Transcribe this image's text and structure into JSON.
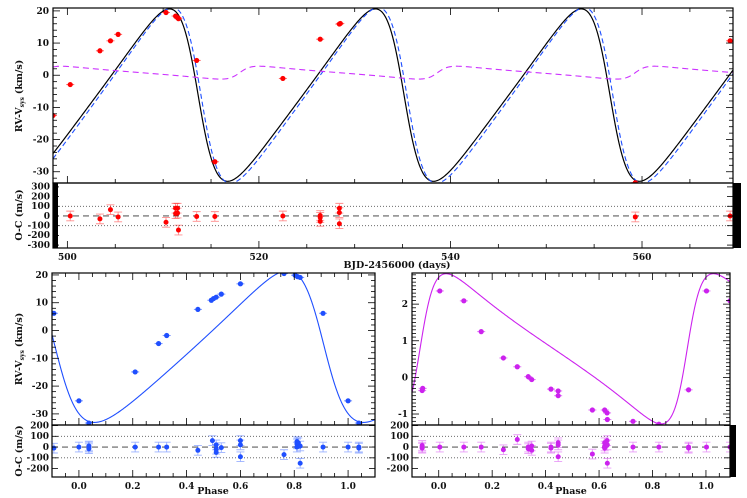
{
  "chart_data": [
    {
      "type": "line",
      "panel": "top-time-series",
      "xlabel": "BJD-2456000 (days)",
      "ylabel": {
        "main": "RV-V",
        "sub": "sys",
        "unit": "(km/s)"
      },
      "xlim": [
        498.5,
        569.5
      ],
      "ylim": [
        -33.5,
        20.9
      ],
      "xticks": [
        "500",
        "520",
        "540",
        "560"
      ],
      "xtick_values": [
        500,
        520,
        540,
        560
      ],
      "yticks": [
        "20",
        "10",
        "0",
        "-10",
        "-20",
        "-30"
      ],
      "ytick_values": [
        20,
        10,
        0,
        -10,
        -20,
        -30
      ],
      "colors": {
        "data": "#ff0000",
        "model_total": "#000000",
        "model_primary": "#1f4fff",
        "model_secondary": "#cc33ff"
      },
      "series": [
        {
          "type": "scatter",
          "x": [
            498.5,
            500.3,
            503.4,
            504.5,
            505.3,
            510.3,
            511.3,
            511.5,
            511.6,
            513.5,
            515.4,
            522.5,
            526.4,
            528.4,
            528.5,
            559.3,
            569.2
          ],
          "y": [
            -12.5,
            -2.9,
            7.6,
            10.7,
            12.7,
            19.5,
            18.4,
            17.9,
            17.6,
            4.6,
            -26.9,
            -1.0,
            11.2,
            15.9,
            16.1,
            -33.4,
            10.7
          ]
        }
      ],
      "residuals": {
        "ylabel": "O-C (m/s)",
        "ylim": [
          -330,
          340
        ],
        "yticks": [
          "300",
          "200",
          "100",
          "0",
          "-100",
          "-200",
          "-300"
        ],
        "ytick_values": [
          300,
          200,
          100,
          0,
          -100,
          -200,
          -300
        ],
        "x": [
          498.5,
          500.3,
          503.4,
          504.5,
          505.3,
          510.3,
          511.3,
          511.3,
          511.5,
          511.5,
          511.6,
          513.5,
          515.4,
          522.5,
          526.4,
          526.4,
          526.4,
          528.4,
          528.4,
          528.4,
          559.3,
          569.2
        ],
        "y": [
          0,
          0,
          -30,
          65,
          -10,
          -65,
          80,
          25,
          80,
          30,
          -145,
          -5,
          -5,
          0,
          5,
          -15,
          -55,
          80,
          35,
          -80,
          -10,
          0
        ],
        "err": 50
      }
    },
    {
      "type": "line",
      "panel": "bottom-left-phase",
      "xlabel": "Phase",
      "ylabel": {
        "main": "RV-V",
        "sub": "sys",
        "unit": "(km/s)"
      },
      "xlim": [
        -0.1,
        1.1
      ],
      "ylim": [
        -34,
        20.7
      ],
      "xticks": [
        "0.0",
        "0.2",
        "0.4",
        "0.6",
        "0.8",
        "1.0"
      ],
      "xtick_values": [
        0,
        0.2,
        0.4,
        0.6,
        0.8,
        1.0
      ],
      "yticks": [
        "20",
        "10",
        "0",
        "-10",
        "-20",
        "-30"
      ],
      "ytick_values": [
        20,
        10,
        0,
        -10,
        -20,
        -30
      ],
      "color": "#1f4fff",
      "series": [
        {
          "type": "scatter",
          "x": [
            -0.093,
            0.0,
            0.037,
            0.209,
            0.296,
            0.326,
            0.442,
            0.492,
            0.5,
            0.51,
            0.529,
            0.6,
            0.762,
            0.803,
            0.812,
            0.822,
            0.907,
            1.0,
            1.04
          ],
          "y": [
            6.2,
            -25.3,
            -33.3,
            -14.9,
            -4.7,
            -1.8,
            7.6,
            10.9,
            11.5,
            12.0,
            13.1,
            16.8,
            20.5,
            19.9,
            19.4,
            19.1,
            6.2,
            -25.3,
            -33.3
          ]
        }
      ],
      "residuals": {
        "ylabel": "O-C (m/s)",
        "ylim": [
          -278,
          205
        ],
        "yticks": [
          "200",
          "100",
          "0",
          "-100",
          "-200"
        ],
        "ytick_values": [
          200,
          100,
          0,
          -100,
          -200
        ],
        "x": [
          -0.093,
          0.0,
          0.037,
          0.037,
          0.037,
          0.209,
          0.296,
          0.326,
          0.442,
          0.496,
          0.51,
          0.51,
          0.51,
          0.529,
          0.6,
          0.6,
          0.6,
          0.762,
          0.81,
          0.81,
          0.81,
          0.815,
          0.822,
          0.822,
          0.907,
          1.0,
          1.04,
          1.04
        ],
        "y": [
          -10,
          0,
          0,
          -15,
          10,
          0,
          0,
          0,
          -30,
          60,
          -20,
          -50,
          20,
          -5,
          60,
          20,
          -90,
          -70,
          50,
          30,
          0,
          40,
          -150,
          10,
          0,
          0,
          0,
          -10
        ],
        "err": 45
      }
    },
    {
      "type": "line",
      "panel": "bottom-right-phase",
      "xlabel": "Phase",
      "xlim": [
        -0.1,
        1.09
      ],
      "ylim": [
        -1.3,
        2.85
      ],
      "xticks": [
        "0.0",
        "0.2",
        "0.4",
        "0.6",
        "0.8",
        "1.0"
      ],
      "xtick_values": [
        0,
        0.2,
        0.4,
        0.6,
        0.8,
        1.0
      ],
      "yticks": [
        "2",
        "1",
        "0",
        "-1"
      ],
      "ytick_values": [
        2,
        1,
        0,
        -1
      ],
      "color": "#cc22ee",
      "series": [
        {
          "type": "scatter",
          "x": [
            -0.062,
            -0.06,
            0.004,
            0.094,
            0.159,
            0.242,
            0.294,
            0.335,
            0.348,
            0.42,
            0.447,
            0.447,
            0.575,
            0.621,
            0.63,
            0.631,
            0.727,
            0.824,
            0.935,
            1.002,
            1.09
          ],
          "y": [
            -0.36,
            -0.3,
            2.36,
            2.09,
            1.25,
            0.53,
            0.29,
            0.02,
            -0.06,
            -0.32,
            -0.37,
            -0.5,
            -0.89,
            -0.89,
            -0.97,
            -1.15,
            -1.2,
            -1.28,
            -0.34,
            2.36,
            2.09
          ]
        }
      ],
      "residuals": {
        "ylim": [
          -278,
          205
        ],
        "yticks": [
          "200",
          "100",
          "0",
          "-100",
          "-200"
        ],
        "ytick_values": [
          200,
          100,
          0,
          -100,
          -200
        ],
        "x": [
          -0.062,
          -0.062,
          -0.062,
          0.004,
          0.094,
          0.159,
          0.242,
          0.294,
          0.335,
          0.335,
          0.348,
          0.348,
          0.42,
          0.42,
          0.447,
          0.447,
          0.447,
          0.575,
          0.621,
          0.621,
          0.621,
          0.63,
          0.631,
          0.631,
          0.727,
          0.824,
          0.935,
          0.935,
          1.002,
          1.09
        ],
        "y": [
          0,
          -10,
          15,
          0,
          0,
          0,
          -25,
          70,
          0,
          -15,
          -30,
          10,
          0,
          -10,
          40,
          20,
          -90,
          -65,
          40,
          10,
          -10,
          60,
          -150,
          20,
          0,
          0,
          0,
          -10,
          0,
          0
        ],
        "err": 45
      }
    }
  ]
}
